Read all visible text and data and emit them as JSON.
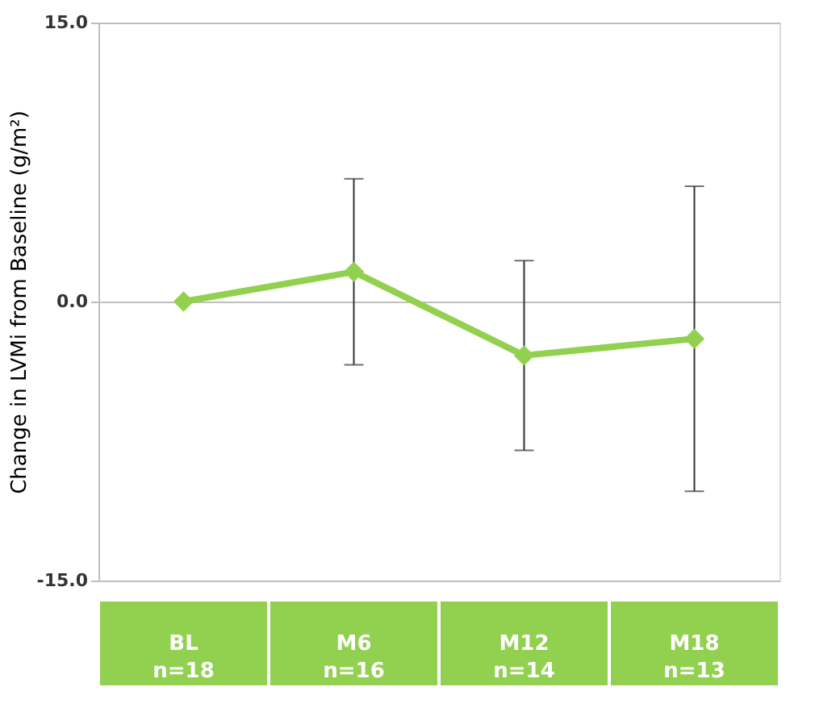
{
  "chart_data": {
    "type": "line",
    "ylabel": "Change in LVMi from Baseline (g/m²)",
    "categories": [
      "BL\nn=18",
      "M6\nn=16",
      "M12\nn=14",
      "M18\nn=13"
    ],
    "series": [
      {
        "color": "#92d050",
        "values": [
          0,
          1.6,
          -2.9,
          -2.0
        ],
        "errors": [
          null,
          5.0,
          5.1,
          8.2
        ]
      }
    ],
    "ylim": [
      -15,
      15
    ],
    "yticks": [
      {
        "value": 15,
        "label": "15.0"
      },
      {
        "value": 0,
        "label": "0.0"
      },
      {
        "value": -15,
        "label": "-15.0"
      }
    ],
    "grid": "y",
    "marker": "diamond",
    "line_style": "solid"
  }
}
